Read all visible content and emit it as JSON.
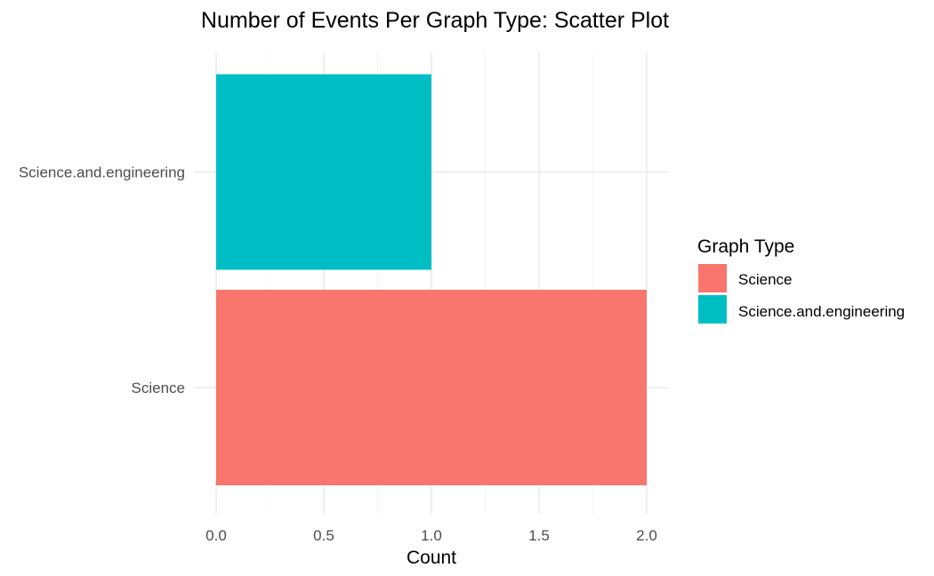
{
  "chart_data": {
    "type": "bar",
    "orientation": "horizontal",
    "title": "Number of Events Per Graph Type: Scatter Plot",
    "xlabel": "Count",
    "ylabel": "",
    "xlim": [
      0,
      2.1
    ],
    "x_ticks": [
      0.0,
      0.5,
      1.0,
      1.5,
      2.0
    ],
    "x_tick_labels": [
      "0.0",
      "0.5",
      "1.0",
      "1.5",
      "2.0"
    ],
    "categories": [
      "Science",
      "Science.and.engineering"
    ],
    "values": [
      2,
      1
    ],
    "colors": [
      "#F8766D",
      "#00BFC4"
    ],
    "grid": true,
    "legend": {
      "title": "Graph Type",
      "placement": "right",
      "entries": [
        {
          "label": "Science",
          "color": "#F8766D"
        },
        {
          "label": "Science.and.engineering",
          "color": "#00BFC4"
        }
      ]
    }
  }
}
